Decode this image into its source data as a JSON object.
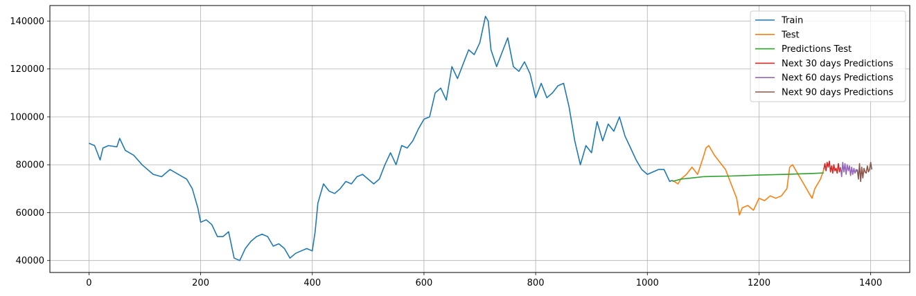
{
  "chart_data": {
    "type": "line",
    "title": "",
    "xlabel": "",
    "ylabel": "",
    "xlim": [
      -70,
      1470
    ],
    "ylim": [
      35000,
      146500
    ],
    "xticks": [
      0,
      200,
      400,
      600,
      800,
      1000,
      1200,
      1400
    ],
    "yticks": [
      40000,
      60000,
      80000,
      100000,
      120000,
      140000
    ],
    "xtick_labels": [
      "0",
      "200",
      "400",
      "600",
      "800",
      "1000",
      "1200",
      "1400"
    ],
    "ytick_labels": [
      "40000",
      "60000",
      "80000",
      "100000",
      "120000",
      "140000"
    ],
    "grid": true,
    "legend_position": "top-right",
    "series": [
      {
        "name": "Train",
        "color": "#1f77b4",
        "x": [
          0,
          10,
          15,
          20,
          25,
          35,
          50,
          55,
          65,
          80,
          95,
          100,
          115,
          130,
          145,
          160,
          175,
          185,
          195,
          200,
          210,
          220,
          230,
          240,
          250,
          260,
          270,
          280,
          290,
          300,
          310,
          320,
          330,
          340,
          350,
          360,
          370,
          380,
          390,
          400,
          405,
          410,
          415,
          420,
          430,
          440,
          450,
          460,
          470,
          480,
          490,
          500,
          510,
          520,
          530,
          540,
          550,
          560,
          570,
          580,
          590,
          600,
          610,
          620,
          630,
          640,
          650,
          660,
          670,
          680,
          690,
          700,
          710,
          715,
          720,
          730,
          740,
          750,
          760,
          770,
          780,
          790,
          800,
          810,
          820,
          830,
          840,
          850,
          860,
          870,
          880,
          890,
          900,
          910,
          920,
          930,
          940,
          950,
          960,
          970,
          980,
          990,
          1000,
          1010,
          1020,
          1030,
          1040,
          1045
        ],
        "values": [
          89000,
          88000,
          85000,
          82000,
          87000,
          88000,
          87500,
          91000,
          86000,
          84000,
          80000,
          79000,
          76000,
          75000,
          78000,
          76000,
          74000,
          70000,
          62000,
          56000,
          57000,
          55000,
          50000,
          50000,
          52000,
          41000,
          40000,
          45000,
          48000,
          50000,
          51000,
          50000,
          46000,
          47000,
          45000,
          41000,
          43000,
          44000,
          45000,
          44000,
          52000,
          64000,
          68000,
          72000,
          69000,
          68000,
          70000,
          73000,
          72000,
          75000,
          76000,
          74000,
          72000,
          74000,
          80000,
          85000,
          80000,
          88000,
          87000,
          90000,
          95000,
          99000,
          100000,
          110000,
          112000,
          107000,
          121000,
          116000,
          122000,
          128000,
          126000,
          131000,
          142000,
          140000,
          128000,
          121000,
          127000,
          133000,
          121000,
          119000,
          123000,
          118000,
          108000,
          114000,
          108000,
          110000,
          113000,
          114000,
          104000,
          90000,
          80000,
          88000,
          85000,
          98000,
          90000,
          97000,
          94000,
          100000,
          92000,
          87000,
          82000,
          78000,
          76000,
          77000,
          78000,
          78000,
          73000,
          73500
        ]
      },
      {
        "name": "Test",
        "color": "#ff7f0e",
        "x": [
          1045,
          1055,
          1060,
          1070,
          1080,
          1090,
          1100,
          1105,
          1110,
          1120,
          1130,
          1140,
          1150,
          1160,
          1165,
          1170,
          1180,
          1190,
          1200,
          1210,
          1220,
          1230,
          1240,
          1250,
          1255,
          1260,
          1270,
          1280,
          1290,
          1295,
          1300,
          1310,
          1316
        ],
        "values": [
          73500,
          72000,
          74000,
          76000,
          79000,
          76000,
          83000,
          87000,
          88000,
          84000,
          81000,
          78000,
          72000,
          66000,
          59000,
          62000,
          63000,
          61000,
          66000,
          65000,
          67000,
          66000,
          67000,
          70000,
          79000,
          80000,
          76000,
          72000,
          68000,
          66000,
          70000,
          74000,
          78000
        ]
      },
      {
        "name": "Predictions Test",
        "color": "#2ca02c",
        "x": [
          1045,
          1060,
          1080,
          1100,
          1150,
          1200,
          1250,
          1300,
          1316
        ],
        "values": [
          73000,
          74000,
          74500,
          75000,
          75300,
          75700,
          76000,
          76400,
          76600
        ]
      },
      {
        "name": "Next 30 days Predictions",
        "color": "#d62728",
        "x": [
          1316,
          1318,
          1320,
          1322,
          1324,
          1326,
          1328,
          1330,
          1332,
          1334,
          1336,
          1338,
          1340,
          1342,
          1344,
          1346
        ],
        "values": [
          78000,
          80500,
          77500,
          81000,
          79000,
          81500,
          77000,
          79500,
          76500,
          80000,
          77500,
          78500,
          76500,
          80500,
          77000,
          79000
        ]
      },
      {
        "name": "Next 60 days Predictions",
        "color": "#9467bd",
        "x": [
          1346,
          1348,
          1350,
          1352,
          1354,
          1356,
          1358,
          1360,
          1362,
          1364,
          1366,
          1368,
          1370,
          1372,
          1374,
          1376
        ],
        "values": [
          79000,
          75000,
          81000,
          77000,
          80500,
          76000,
          80000,
          77500,
          79500,
          75500,
          79000,
          76000,
          78500,
          76500,
          78000,
          77000
        ]
      },
      {
        "name": "Next 90 days Predictions",
        "color": "#8c564b",
        "x": [
          1376,
          1378,
          1380,
          1382,
          1384,
          1386,
          1388,
          1390,
          1392,
          1394,
          1396,
          1398,
          1400,
          1402
        ],
        "values": [
          78000,
          74000,
          80500,
          73000,
          79000,
          74500,
          78500,
          77000,
          76500,
          79500,
          77000,
          78000,
          81000,
          78000
        ]
      }
    ]
  }
}
